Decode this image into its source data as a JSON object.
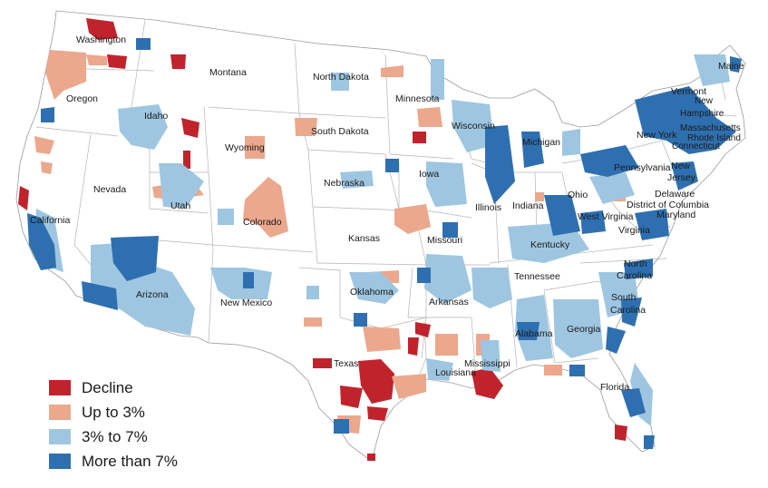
{
  "map": {
    "legend": [
      {
        "label": "Decline",
        "color": "#c0232c"
      },
      {
        "label": "Up to 3%",
        "color": "#eba88d"
      },
      {
        "label": "3% to 7%",
        "color": "#9ec6e1"
      },
      {
        "label": "More than 7%",
        "color": "#2e6fb0"
      }
    ],
    "states": {
      "washington": "Washington",
      "oregon": "Oregon",
      "california": "California",
      "idaho": "Idaho",
      "nevada": "Nevada",
      "montana": "Montana",
      "wyoming": "Wyoming",
      "utah": "Utah",
      "arizona": "Arizona",
      "colorado": "Colorado",
      "new_mexico": "New Mexico",
      "north_dakota": "North Dakota",
      "south_dakota": "South Dakota",
      "nebraska": "Nebraska",
      "kansas": "Kansas",
      "oklahoma": "Oklahoma",
      "texas": "Texas",
      "minnesota": "Minnesota",
      "iowa": "Iowa",
      "missouri": "Missouri",
      "arkansas": "Arkansas",
      "louisiana": "Louisiana",
      "wisconsin": "Wisconsin",
      "illinois": "Illinois",
      "michigan": "Michigan",
      "indiana": "Indiana",
      "ohio": "Ohio",
      "kentucky": "Kentucky",
      "tennessee": "Tennessee",
      "mississippi": "Mississippi",
      "alabama": "Alabama",
      "georgia": "Georgia",
      "florida": "Florida",
      "south_carolina": "South Carolina",
      "north_carolina": "North Carolina",
      "virginia": "Virginia",
      "west_virginia": "West Virginia",
      "pennsylvania": "Pennsylvania",
      "new_york": "New York",
      "new_jersey": "New Jersey",
      "delaware": "Delaware",
      "district_of_columbia": "District of Columbia",
      "maryland": "Maryland",
      "connecticut": "Connecticut",
      "rhode_island": "Rhode Island",
      "massachusetts": "Massachusetts",
      "vermont": "Vermont",
      "new_hampshire": "New Hampshire",
      "maine": "Maine"
    }
  }
}
